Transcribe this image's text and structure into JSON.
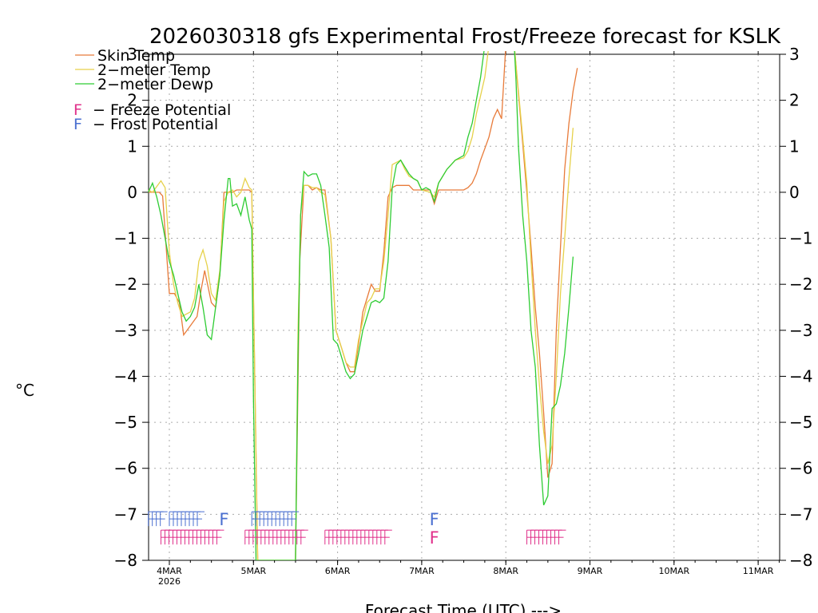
{
  "chart_data": {
    "type": "line",
    "title": "2026030318 gfs Experimental Frost/Freeze forecast for KSLK",
    "xlabel": "Forecast Time (UTC) --->",
    "ylabel": "°C",
    "ylim": [
      -8,
      3
    ],
    "y_ticks": [
      -8,
      -7,
      -6,
      -5,
      -4,
      -3,
      -2,
      -1,
      0,
      1,
      2,
      3
    ],
    "y_tick_labels": [
      "−8",
      "−7",
      "−6",
      "−5",
      "−4",
      "−3",
      "−2",
      "−1",
      "0",
      "1",
      "2",
      "3"
    ],
    "xlim": [
      -0.25,
      7.25
    ],
    "x_units": "days since 4MAR 00Z",
    "x_ticks": [
      {
        "x": 0,
        "label": "4MAR",
        "sublabel": "2026"
      },
      {
        "x": 1,
        "label": "5MAR",
        "sublabel": ""
      },
      {
        "x": 2,
        "label": "6MAR",
        "sublabel": ""
      },
      {
        "x": 3,
        "label": "7MAR",
        "sublabel": ""
      },
      {
        "x": 4,
        "label": "8MAR",
        "sublabel": ""
      },
      {
        "x": 5,
        "label": "9MAR",
        "sublabel": ""
      },
      {
        "x": 6,
        "label": "10MAR",
        "sublabel": ""
      },
      {
        "x": 7,
        "label": "11MAR",
        "sublabel": ""
      }
    ],
    "grid": true,
    "legend_position": "top-left",
    "series": [
      {
        "name": "Skin Temp",
        "color": "#e87b3a",
        "points": [
          [
            -0.25,
            0
          ],
          [
            -0.12,
            0
          ],
          [
            -0.08,
            -0.08
          ],
          [
            0,
            -2.2
          ],
          [
            0.06,
            -2.2
          ],
          [
            0.12,
            -2.4
          ],
          [
            0.17,
            -3.1
          ],
          [
            0.25,
            -2.9
          ],
          [
            0.33,
            -2.7
          ],
          [
            0.38,
            -2.1
          ],
          [
            0.42,
            -1.7
          ],
          [
            0.5,
            -2.4
          ],
          [
            0.55,
            -2.5
          ],
          [
            0.6,
            -1.8
          ],
          [
            0.65,
            0
          ],
          [
            0.7,
            0
          ],
          [
            0.75,
            0
          ],
          [
            0.8,
            0.05
          ],
          [
            0.85,
            0.05
          ],
          [
            0.9,
            0.05
          ],
          [
            0.95,
            0.05
          ],
          [
            0.98,
            0
          ],
          [
            1.02,
            -4.5
          ],
          [
            1.05,
            -8
          ],
          [
            1.5,
            -8
          ],
          [
            1.55,
            -1.5
          ],
          [
            1.6,
            0.15
          ],
          [
            1.65,
            0.15
          ],
          [
            1.7,
            0.05
          ],
          [
            1.75,
            0.1
          ],
          [
            1.8,
            0.05
          ],
          [
            1.85,
            0.05
          ],
          [
            1.92,
            -1
          ],
          [
            1.98,
            -3
          ],
          [
            2.05,
            -3.4
          ],
          [
            2.1,
            -3.7
          ],
          [
            2.15,
            -3.9
          ],
          [
            2.2,
            -3.9
          ],
          [
            2.25,
            -3.3
          ],
          [
            2.3,
            -2.6
          ],
          [
            2.35,
            -2.3
          ],
          [
            2.4,
            -2
          ],
          [
            2.45,
            -2.15
          ],
          [
            2.5,
            -2.15
          ],
          [
            2.55,
            -1.3
          ],
          [
            2.6,
            -0.1
          ],
          [
            2.65,
            0.1
          ],
          [
            2.7,
            0.15
          ],
          [
            2.75,
            0.15
          ],
          [
            2.85,
            0.15
          ],
          [
            2.9,
            0.05
          ],
          [
            2.95,
            0.05
          ],
          [
            3,
            0.05
          ],
          [
            3.1,
            0.05
          ],
          [
            3.15,
            -0.25
          ],
          [
            3.2,
            0.05
          ],
          [
            3.3,
            0.05
          ],
          [
            3.4,
            0.05
          ],
          [
            3.5,
            0.05
          ],
          [
            3.55,
            0.1
          ],
          [
            3.6,
            0.2
          ],
          [
            3.65,
            0.4
          ],
          [
            3.7,
            0.7
          ],
          [
            3.75,
            0.95
          ],
          [
            3.8,
            1.2
          ],
          [
            3.85,
            1.6
          ],
          [
            3.9,
            1.8
          ],
          [
            3.95,
            1.6
          ],
          [
            4.0,
            3.2
          ],
          [
            4.05,
            3.2
          ],
          [
            4.1,
            3.2
          ],
          [
            4.18,
            1.5
          ],
          [
            4.25,
            0
          ],
          [
            4.3,
            -1.2
          ],
          [
            4.35,
            -2.5
          ],
          [
            4.4,
            -3.5
          ],
          [
            4.45,
            -4.8
          ],
          [
            4.5,
            -6.2
          ],
          [
            4.55,
            -5.9
          ],
          [
            4.6,
            -3
          ],
          [
            4.65,
            -1.2
          ],
          [
            4.7,
            0.5
          ],
          [
            4.75,
            1.5
          ],
          [
            4.8,
            2.2
          ],
          [
            4.85,
            2.7
          ]
        ]
      },
      {
        "name": "2-meter Temp",
        "color": "#e6d14a",
        "points": [
          [
            -0.25,
            0.05
          ],
          [
            -0.2,
            0
          ],
          [
            -0.1,
            0.25
          ],
          [
            -0.05,
            0.1
          ],
          [
            0,
            -1.3
          ],
          [
            0.05,
            -2
          ],
          [
            0.1,
            -2.4
          ],
          [
            0.15,
            -2.7
          ],
          [
            0.2,
            -2.65
          ],
          [
            0.25,
            -2.6
          ],
          [
            0.3,
            -2.3
          ],
          [
            0.35,
            -1.5
          ],
          [
            0.4,
            -1.25
          ],
          [
            0.45,
            -1.6
          ],
          [
            0.5,
            -2.2
          ],
          [
            0.55,
            -2.35
          ],
          [
            0.6,
            -1.7
          ],
          [
            0.65,
            -0.2
          ],
          [
            0.7,
            0
          ],
          [
            0.75,
            0.05
          ],
          [
            0.8,
            -0.1
          ],
          [
            0.85,
            0
          ],
          [
            0.9,
            0.3
          ],
          [
            0.95,
            0.1
          ],
          [
            0.98,
            0.05
          ],
          [
            1.02,
            -4.5
          ],
          [
            1.05,
            -8
          ],
          [
            1.5,
            -8
          ],
          [
            1.53,
            -3
          ],
          [
            1.56,
            -0.5
          ],
          [
            1.6,
            0.15
          ],
          [
            1.65,
            0.15
          ],
          [
            1.7,
            0.1
          ],
          [
            1.75,
            0.1
          ],
          [
            1.8,
            0
          ],
          [
            1.85,
            -0.05
          ],
          [
            1.92,
            -1
          ],
          [
            1.98,
            -3
          ],
          [
            2.05,
            -3.4
          ],
          [
            2.1,
            -3.7
          ],
          [
            2.15,
            -3.8
          ],
          [
            2.2,
            -3.8
          ],
          [
            2.25,
            -3.2
          ],
          [
            2.3,
            -2.8
          ],
          [
            2.35,
            -2.4
          ],
          [
            2.4,
            -2.3
          ],
          [
            2.45,
            -2.1
          ],
          [
            2.5,
            -2.1
          ],
          [
            2.55,
            -1.5
          ],
          [
            2.6,
            -0.5
          ],
          [
            2.65,
            0.6
          ],
          [
            2.7,
            0.65
          ],
          [
            2.75,
            0.7
          ],
          [
            2.8,
            0.5
          ],
          [
            2.85,
            0.35
          ],
          [
            2.9,
            0.3
          ],
          [
            2.95,
            0.25
          ],
          [
            3,
            0.05
          ],
          [
            3.1,
            0
          ],
          [
            3.15,
            -0.1
          ],
          [
            3.2,
            0.2
          ],
          [
            3.3,
            0.5
          ],
          [
            3.4,
            0.7
          ],
          [
            3.5,
            0.75
          ],
          [
            3.55,
            0.9
          ],
          [
            3.6,
            1.2
          ],
          [
            3.65,
            1.7
          ],
          [
            3.7,
            2.1
          ],
          [
            3.75,
            2.5
          ],
          [
            3.8,
            3.2
          ],
          [
            4.0,
            3.2
          ],
          [
            4.1,
            3.2
          ],
          [
            4.15,
            2.2
          ],
          [
            4.2,
            1.2
          ],
          [
            4.25,
            0.2
          ],
          [
            4.3,
            -1.5
          ],
          [
            4.35,
            -3
          ],
          [
            4.4,
            -4.2
          ],
          [
            4.45,
            -5.2
          ],
          [
            4.5,
            -5.9
          ],
          [
            4.55,
            -5.5
          ],
          [
            4.6,
            -4
          ],
          [
            4.65,
            -2.2
          ],
          [
            4.7,
            -1
          ],
          [
            4.75,
            0.3
          ],
          [
            4.8,
            1.4
          ]
        ]
      },
      {
        "name": "2-meter Dewp",
        "color": "#2ecc33",
        "points": [
          [
            -0.25,
            0
          ],
          [
            -0.2,
            0.2
          ],
          [
            -0.15,
            -0.1
          ],
          [
            -0.1,
            -0.5
          ],
          [
            -0.05,
            -1
          ],
          [
            0,
            -1.5
          ],
          [
            0.05,
            -1.8
          ],
          [
            0.1,
            -2.2
          ],
          [
            0.15,
            -2.6
          ],
          [
            0.2,
            -2.8
          ],
          [
            0.25,
            -2.7
          ],
          [
            0.3,
            -2.5
          ],
          [
            0.35,
            -2
          ],
          [
            0.4,
            -2.5
          ],
          [
            0.45,
            -3.1
          ],
          [
            0.5,
            -3.2
          ],
          [
            0.55,
            -2.5
          ],
          [
            0.6,
            -1.8
          ],
          [
            0.65,
            -0.6
          ],
          [
            0.7,
            0.3
          ],
          [
            0.72,
            0.3
          ],
          [
            0.75,
            -0.3
          ],
          [
            0.8,
            -0.25
          ],
          [
            0.85,
            -0.5
          ],
          [
            0.9,
            -0.1
          ],
          [
            0.95,
            -0.6
          ],
          [
            0.98,
            -0.8
          ],
          [
            1.0,
            -4.5
          ],
          [
            1.03,
            -8
          ],
          [
            1.5,
            -8
          ],
          [
            1.53,
            -3.5
          ],
          [
            1.56,
            -0.5
          ],
          [
            1.6,
            0.45
          ],
          [
            1.65,
            0.35
          ],
          [
            1.7,
            0.4
          ],
          [
            1.75,
            0.4
          ],
          [
            1.8,
            0.15
          ],
          [
            1.85,
            -0.5
          ],
          [
            1.9,
            -1.2
          ],
          [
            1.95,
            -3.2
          ],
          [
            2.0,
            -3.3
          ],
          [
            2.05,
            -3.6
          ],
          [
            2.1,
            -3.9
          ],
          [
            2.15,
            -4.05
          ],
          [
            2.2,
            -3.95
          ],
          [
            2.25,
            -3.5
          ],
          [
            2.3,
            -3
          ],
          [
            2.35,
            -2.7
          ],
          [
            2.4,
            -2.4
          ],
          [
            2.45,
            -2.35
          ],
          [
            2.5,
            -2.4
          ],
          [
            2.55,
            -2.3
          ],
          [
            2.6,
            -1.5
          ],
          [
            2.65,
            0.1
          ],
          [
            2.7,
            0.6
          ],
          [
            2.75,
            0.7
          ],
          [
            2.8,
            0.55
          ],
          [
            2.85,
            0.4
          ],
          [
            2.9,
            0.3
          ],
          [
            2.95,
            0.25
          ],
          [
            3.0,
            0.05
          ],
          [
            3.05,
            0.1
          ],
          [
            3.1,
            0.05
          ],
          [
            3.15,
            -0.2
          ],
          [
            3.2,
            0.2
          ],
          [
            3.3,
            0.5
          ],
          [
            3.4,
            0.7
          ],
          [
            3.5,
            0.8
          ],
          [
            3.55,
            1.2
          ],
          [
            3.6,
            1.5
          ],
          [
            3.65,
            2
          ],
          [
            3.7,
            2.5
          ],
          [
            3.75,
            3.2
          ],
          [
            3.8,
            3.2
          ],
          [
            4.0,
            3.2
          ],
          [
            4.1,
            3.2
          ],
          [
            4.12,
            2.5
          ],
          [
            4.15,
            1
          ],
          [
            4.2,
            -0.5
          ],
          [
            4.25,
            -1.5
          ],
          [
            4.3,
            -3
          ],
          [
            4.35,
            -3.8
          ],
          [
            4.4,
            -5.5
          ],
          [
            4.45,
            -6.8
          ],
          [
            4.5,
            -6.6
          ],
          [
            4.55,
            -4.7
          ],
          [
            4.6,
            -4.6
          ],
          [
            4.65,
            -4.2
          ],
          [
            4.7,
            -3.5
          ],
          [
            4.75,
            -2.5
          ],
          [
            4.8,
            -1.4
          ]
        ]
      }
    ],
    "legend": {
      "entries": [
        {
          "label": "Skin Temp",
          "color": "#e87b3a"
        },
        {
          "label": "2−meter Temp",
          "color": "#e6d14a"
        },
        {
          "label": "2−meter Dewp",
          "color": "#2ecc33"
        }
      ],
      "potentials": [
        {
          "flag": "F",
          "label": "− Freeze Potential",
          "color": "#e0308a"
        },
        {
          "flag": "F",
          "label": "− Frost Potential",
          "color": "#4a6fd0"
        }
      ]
    },
    "potential_flags": {
      "flag_char": "F",
      "frost": {
        "color": "#4a6fd0",
        "level": -7.1,
        "runs": [
          [
            -0.25,
            -0.1
          ],
          [
            0.0,
            0.35
          ],
          [
            0.65,
            0.65
          ],
          [
            0.98,
            1.5
          ],
          [
            3.15,
            3.15
          ]
        ]
      },
      "freeze": {
        "color": "#e0308a",
        "level": -7.5,
        "runs": [
          [
            -0.1,
            0.6
          ],
          [
            0.9,
            1.6
          ],
          [
            1.85,
            2.6
          ],
          [
            3.15,
            3.15
          ],
          [
            4.25,
            4.65
          ]
        ]
      }
    }
  }
}
